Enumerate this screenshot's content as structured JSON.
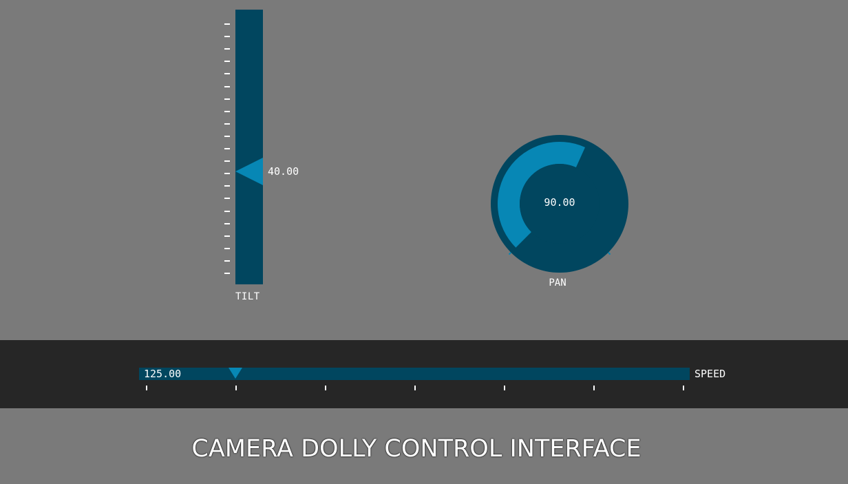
{
  "tilt": {
    "label": "TILT",
    "value_text": "40.00",
    "level_fraction": 0.59,
    "tick_count": 21
  },
  "pan": {
    "label": "PAN",
    "value_text": "90.00",
    "level_fraction": 0.59
  },
  "speed": {
    "label": "SPEED",
    "value_text": "125.00",
    "level_fraction": 0.175,
    "tick_count": 7
  },
  "title": "CAMERA DOLLY CONTROL INTERFACE",
  "colors": {
    "background": "#7a7a7a",
    "track": "#01465f",
    "accent": "#0787b5",
    "band": "#262626",
    "text": "#ffffff"
  },
  "icons": {
    "tilt_handle": "left-pointing-triangle-icon",
    "speed_handle": "down-pointing-triangle-icon"
  }
}
